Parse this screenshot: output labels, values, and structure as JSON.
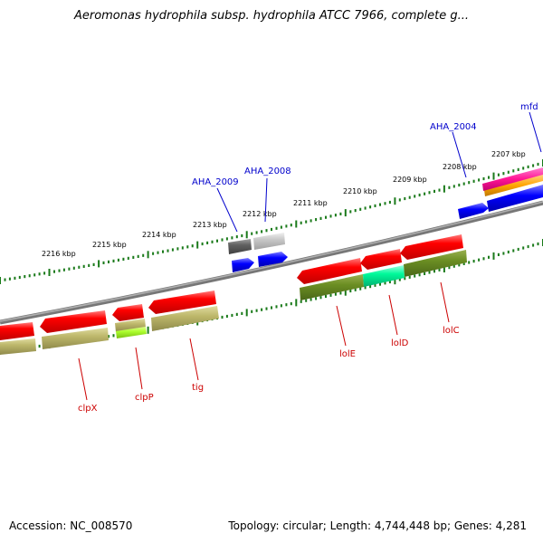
{
  "header": {
    "title": "Aeromonas hydrophila subsp. hydrophila ATCC 7966, complete g..."
  },
  "footer": {
    "accession": "Accession: NC_008570",
    "topology": "Topology: circular; Length: 4,744,448 bp; Genes: 4,281"
  },
  "scale_labels": [
    "2216 kbp",
    "2215 kbp",
    "2214 kbp",
    "2213 kbp",
    "2212 kbp",
    "2211 kbp",
    "2210 kbp",
    "2209 kbp",
    "2208 kbp",
    "2207 kbp"
  ],
  "gene_labels": {
    "forward": [
      "AHA_2009",
      "AHA_2008",
      "AHA_2004",
      "mfd"
    ],
    "reverse": [
      "clpX",
      "clpP",
      "tig",
      "lolE",
      "lolD",
      "lolC"
    ]
  },
  "colors": {
    "forward_label": "#0000cc",
    "reverse_label": "#cc0000",
    "backbone": "#808080",
    "tick": "#1a7a1a"
  }
}
